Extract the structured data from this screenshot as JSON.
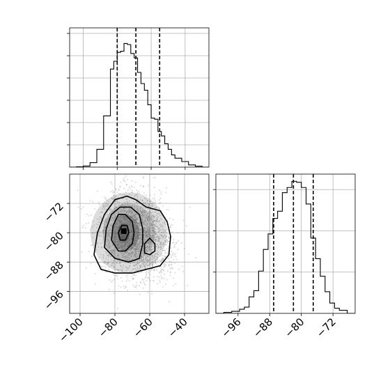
{
  "chart_data": [
    {
      "panel": "top-left",
      "type": "histogram",
      "x_range": [
        -108,
        -26
      ],
      "grid": true,
      "bin_edges": [
        -108,
        -104,
        -100,
        -96,
        -92,
        -88,
        -84,
        -82,
        -80,
        -78,
        -76,
        -74,
        -72,
        -70,
        -68,
        -66,
        -64,
        -62,
        -60,
        -58,
        -56,
        -54,
        -52,
        -50,
        -48,
        -46,
        -42,
        -38,
        -34,
        -30,
        -26
      ],
      "counts": [
        0,
        0.3,
        1,
        4,
        16,
        46,
        88,
        95,
        103,
        104,
        111,
        110,
        102,
        98,
        85,
        75,
        69,
        56,
        44,
        43,
        32,
        28,
        21,
        16,
        11,
        8,
        5,
        2,
        0.8,
        0
      ],
      "ylim": [
        0,
        125
      ],
      "quantiles": [
        -80,
        -69,
        -55
      ],
      "y_ticks": [
        20,
        40,
        60,
        80,
        100,
        120
      ]
    },
    {
      "panel": "bottom-left",
      "type": "2d-histogram-contour",
      "x_range": [
        -106,
        -26
      ],
      "y_range": [
        -102,
        -64
      ],
      "grid": true,
      "x_ticks": [
        -100,
        -80,
        -60,
        -40
      ],
      "x_tick_labels": [
        "−100",
        "−80",
        "−60",
        "−40"
      ],
      "y_ticks": [
        -72,
        -80,
        -88,
        -96
      ],
      "y_tick_labels": [
        "−72",
        "−80",
        "−88",
        "−96"
      ],
      "peak": [
        -75,
        -80
      ],
      "secondary_peak": [
        -60,
        -84
      ]
    },
    {
      "panel": "bottom-right",
      "type": "histogram",
      "x_range": [
        -101.6,
        -66.4
      ],
      "grid": true,
      "bin_edges": [
        -101.6,
        -99.6,
        -97.6,
        -95.6,
        -94.4,
        -93.2,
        -92,
        -90.8,
        -89.6,
        -88.4,
        -87.2,
        -86,
        -84.8,
        -83.6,
        -82.4,
        -81.2,
        -80,
        -78.8,
        -77.6,
        -76.4,
        -75.2,
        -74,
        -72.8,
        -71.6,
        -70.4,
        -68.4,
        -66.4
      ],
      "counts": [
        0,
        1,
        2,
        4,
        6,
        16,
        22,
        41,
        62,
        77,
        92,
        99,
        117,
        122,
        128,
        127,
        122,
        106,
        73,
        53,
        36,
        21,
        10,
        5,
        3,
        0
      ],
      "ylim": [
        0,
        135
      ],
      "quantiles": [
        -87,
        -82,
        -77
      ],
      "y_ticks": [
        40,
        80,
        120
      ],
      "x_ticks": [
        -96,
        -88,
        -80,
        -72
      ],
      "x_tick_labels": [
        "−96",
        "−88",
        "−80",
        "−72"
      ]
    }
  ]
}
